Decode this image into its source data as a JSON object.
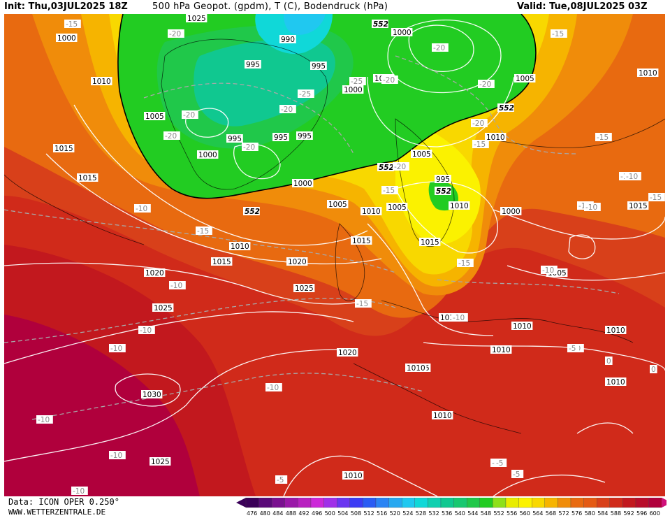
{
  "header": {
    "init": "Init: Thu,03JUL2025 18Z",
    "title": "500 hPa Geopot. (gpdm), T (C), Bodendruck (hPa)",
    "valid": "Valid: Tue,08JUL2025 03Z"
  },
  "footer": {
    "source": "Data: ICON OPER 0.250°",
    "website": "WWW.WETTERZENTRALE.DE"
  },
  "colors": {
    "ocean_deep": "#b0003c",
    "red": "#d02a1a",
    "orange_red": "#e45a14",
    "orange": "#f08c0a",
    "yellow": "#f8d800",
    "light_yellow": "#fbf200",
    "green": "#22cc22",
    "teal": "#10d0b0",
    "cyan": "#20c8f0"
  },
  "scale": {
    "values": [
      "476",
      "480",
      "484",
      "488",
      "492",
      "496",
      "500",
      "504",
      "508",
      "512",
      "516",
      "520",
      "524",
      "528",
      "532",
      "536",
      "540",
      "544",
      "548",
      "552",
      "556",
      "560",
      "564",
      "568",
      "572",
      "576",
      "580",
      "584",
      "588",
      "592",
      "596",
      "600"
    ],
    "colors": [
      "#3a0058",
      "#5a0a78",
      "#7a1090",
      "#9a18a8",
      "#b820c0",
      "#cc28d8",
      "#a030e8",
      "#6a36f0",
      "#3c3cf4",
      "#2a5cf4",
      "#2a84f4",
      "#28a8f0",
      "#20c8f0",
      "#10d8d8",
      "#10d0b0",
      "#10c890",
      "#18c870",
      "#20c84a",
      "#22cc22",
      "#8ee01a",
      "#e8ec00",
      "#fbf200",
      "#f8d800",
      "#f6b400",
      "#f08c0a",
      "#e86a10",
      "#e45a14",
      "#d8401a",
      "#d02a1a",
      "#c2181e",
      "#b80c2a",
      "#b0003c"
    ]
  },
  "map": {
    "geopotential_labels": [
      "552",
      "552",
      "552",
      "552",
      "552"
    ],
    "pressure_labels": [
      "1015",
      "1015",
      "1015",
      "1015",
      "1015",
      "990",
      "995",
      "995",
      "995",
      "995",
      "995",
      "1000",
      "1000",
      "1000",
      "1000",
      "1005",
      "1005",
      "1005",
      "1005",
      "1005",
      "1005",
      "1010",
      "1010",
      "1010",
      "1010",
      "1010",
      "1010",
      "1015",
      "1015",
      "1015",
      "1020",
      "1020",
      "1020",
      "1025",
      "1025",
      "1025",
      "1030",
      "1025",
      "1010",
      "1010",
      "1010",
      "1010",
      "1010",
      "1010",
      "1015",
      "1015",
      "1015",
      "1010",
      "1000",
      "995",
      "1005",
      "1000",
      "1010"
    ],
    "temperature_labels": [
      "-15",
      "-20",
      "-20",
      "-20",
      "-20",
      "-25",
      "-25",
      "-20",
      "-20",
      "-20",
      "-20",
      "-20",
      "-15",
      "-15",
      "-15",
      "-10",
      "-15",
      "-10",
      "-10",
      "-10",
      "-10",
      "-10",
      "-10",
      "-10",
      "-10",
      "-10",
      "-15",
      "-15",
      "-10",
      "-10",
      "-10",
      "-5",
      "-5",
      "-5",
      "-5",
      "0",
      "0",
      "-15",
      "-10",
      "-20",
      "-15",
      "-10",
      "-5"
    ]
  }
}
